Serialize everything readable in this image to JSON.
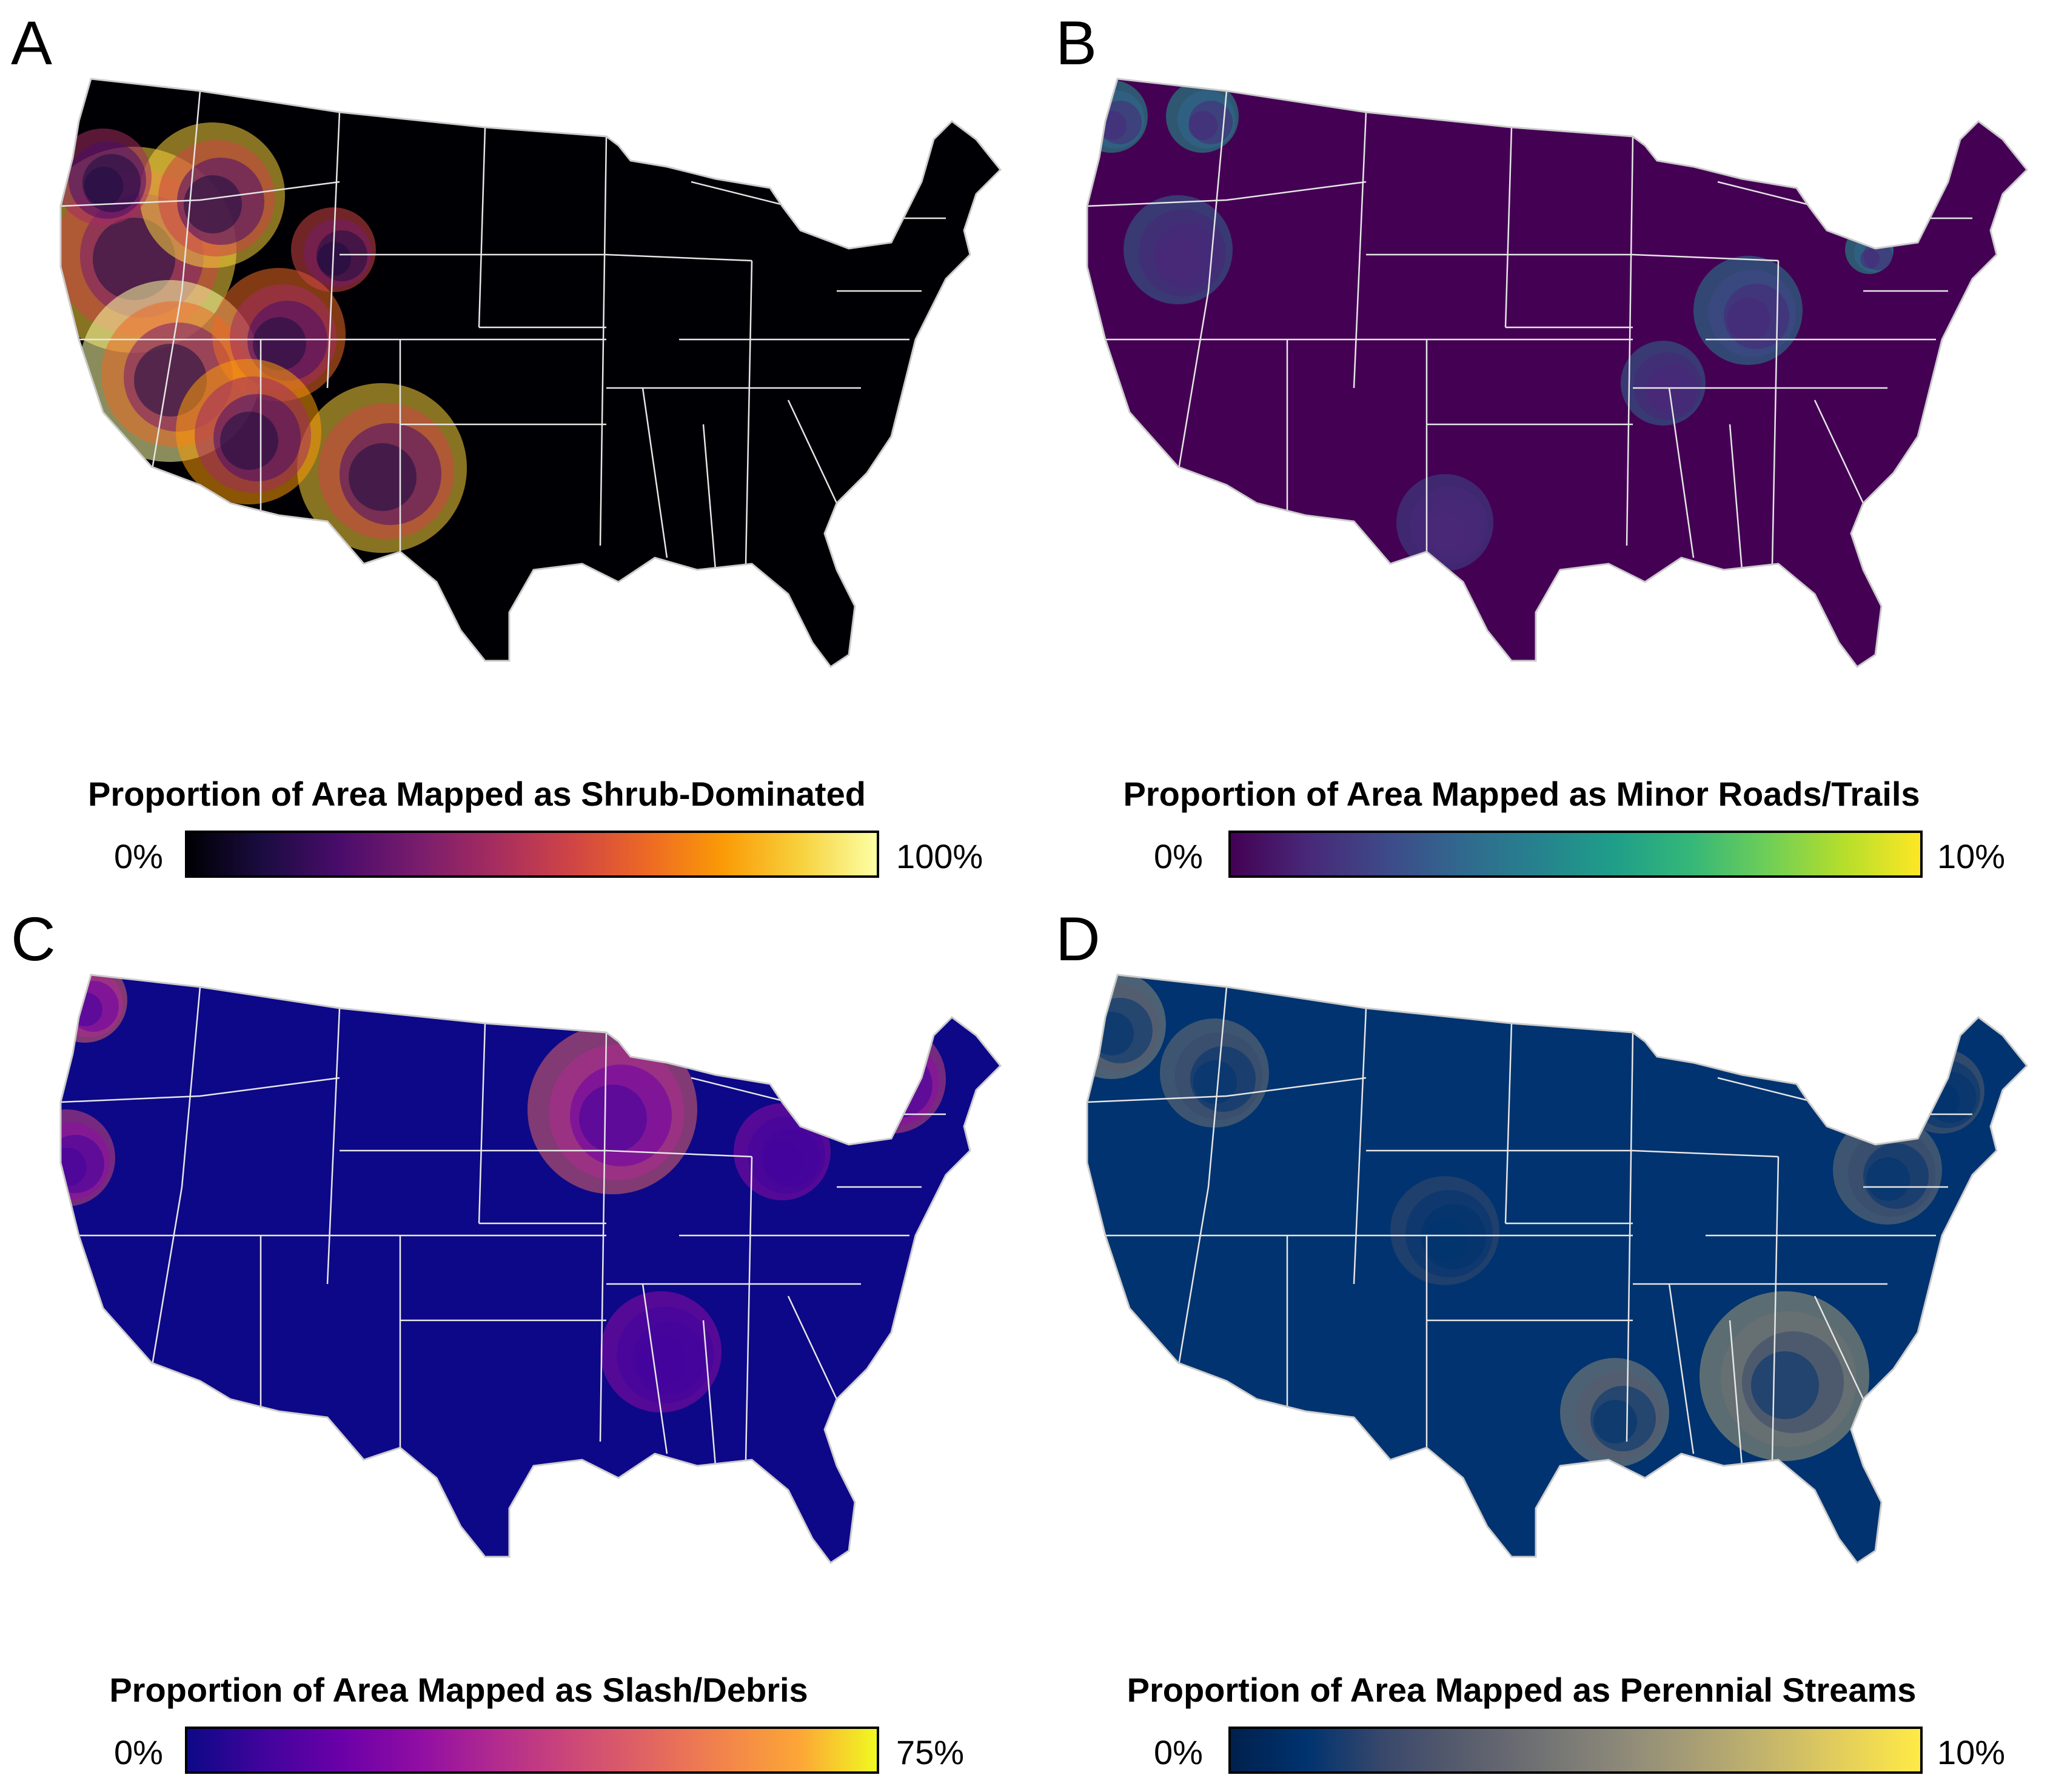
{
  "panels": [
    {
      "letter": "A",
      "legend_title": "Proportion of Area Mapped as Shrub-Dominated",
      "min_label": "0%",
      "max_label": "100%",
      "colormap": "inferno",
      "colors": [
        "#000004",
        "#1b0c41",
        "#4a0c6b",
        "#781c6d",
        "#a52c60",
        "#cf4446",
        "#ed6925",
        "#fb9b06",
        "#f7d13d",
        "#fcffa4"
      ]
    },
    {
      "letter": "B",
      "legend_title": "Proportion of Area Mapped as Minor Roads/Trails",
      "min_label": "0%",
      "max_label": "10%",
      "colormap": "viridis",
      "colors": [
        "#440154",
        "#482878",
        "#3e4989",
        "#31688e",
        "#26828e",
        "#1f9e89",
        "#35b779",
        "#6ece58",
        "#b5de2b",
        "#fde725"
      ]
    },
    {
      "letter": "C",
      "legend_title": "Proportion of Area Mapped as Slash/Debris",
      "min_label": "0%",
      "max_label": "75%",
      "colormap": "plasma",
      "colors": [
        "#0d0887",
        "#41049d",
        "#6a00a8",
        "#8f0da4",
        "#b12a90",
        "#cc4778",
        "#e16462",
        "#f2844b",
        "#fca636",
        "#f0f921"
      ]
    },
    {
      "letter": "D",
      "legend_title": "Proportion of Area Mapped as Perennial Streams",
      "min_label": "0%",
      "max_label": "10%",
      "colormap": "cividis",
      "colors": [
        "#00204d",
        "#00336f",
        "#39486b",
        "#575c6d",
        "#707173",
        "#8a8779",
        "#a69d75",
        "#c4b56c",
        "#e4cf5b",
        "#ffea46"
      ]
    }
  ]
}
